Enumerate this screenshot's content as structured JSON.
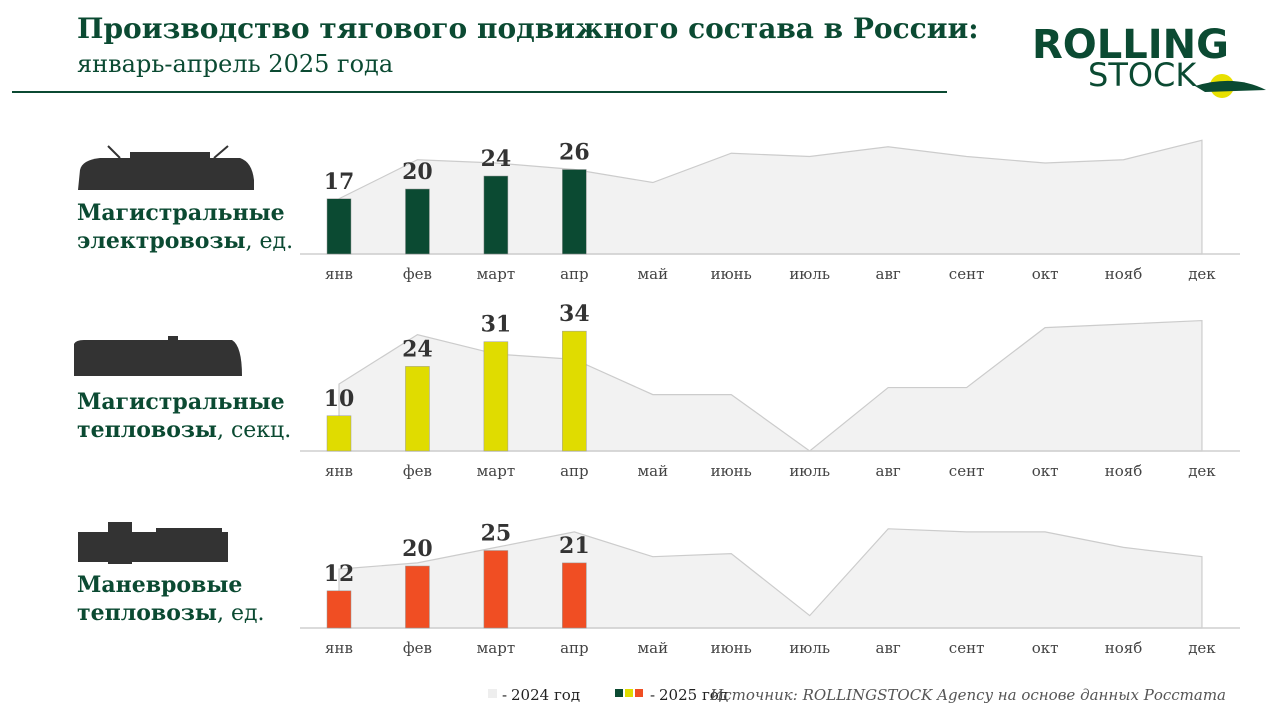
{
  "title": "Производство тягового подвижного состава в России:",
  "subtitle": "январь-апрель 2025 года",
  "logo": [
    "ROLLING",
    "STOCK"
  ],
  "source": "Источник: ROLLINGSTOCK Agency на основе данных Росстата",
  "chart_data": [
    {
      "type": "bar",
      "title": [
        "Магистральные",
        "электровозы"
      ],
      "unit": ", ед.",
      "categories": [
        "янв",
        "фев",
        "март",
        "апр",
        "май",
        "июнь",
        "июль",
        "авг",
        "сент",
        "окт",
        "нояб",
        "дек"
      ],
      "ylim": [
        0,
        40
      ],
      "series": [
        {
          "name": "2024 год",
          "type": "area",
          "color": "#f2f2f2",
          "values": [
            17,
            29,
            28,
            26,
            22,
            31,
            30,
            33,
            30,
            28,
            29,
            35
          ]
        },
        {
          "name": "2025 год",
          "type": "bar",
          "color": "#0b4a32",
          "values": [
            17,
            20,
            24,
            26,
            null,
            null,
            null,
            null,
            null,
            null,
            null,
            null
          ]
        }
      ]
    },
    {
      "type": "bar",
      "title": [
        "Магистральные",
        "тепловозы"
      ],
      "unit": ", секц.",
      "categories": [
        "янв",
        "фев",
        "март",
        "апр",
        "май",
        "июнь",
        "июль",
        "авг",
        "сент",
        "окт",
        "нояб",
        "дек"
      ],
      "ylim": [
        0,
        40
      ],
      "series": [
        {
          "name": "2024 год",
          "type": "area",
          "color": "#f2f2f2",
          "values": [
            19,
            33,
            27.5,
            26,
            16,
            16,
            0,
            18,
            18,
            35,
            36,
            37
          ]
        },
        {
          "name": "2025 год",
          "type": "bar",
          "color": "#e0dc00",
          "values": [
            10,
            24,
            31,
            34,
            null,
            null,
            null,
            null,
            null,
            null,
            null,
            null
          ]
        }
      ]
    },
    {
      "type": "bar",
      "title": [
        "Маневровые",
        "тепловозы"
      ],
      "unit": ", ед.",
      "categories": [
        "янв",
        "фев",
        "март",
        "апр",
        "май",
        "июнь",
        "июль",
        "авг",
        "сент",
        "окт",
        "нояб",
        "дек"
      ],
      "ylim": [
        0,
        40
      ],
      "series": [
        {
          "name": "2024 год",
          "type": "area",
          "color": "#f2f2f2",
          "values": [
            19,
            21,
            26,
            31,
            23,
            24,
            4,
            32,
            31,
            31,
            26,
            23
          ]
        },
        {
          "name": "2025 год",
          "type": "bar",
          "color": "#f04e23",
          "values": [
            12,
            20,
            25,
            21,
            null,
            null,
            null,
            null,
            null,
            null,
            null,
            null
          ]
        }
      ]
    }
  ]
}
